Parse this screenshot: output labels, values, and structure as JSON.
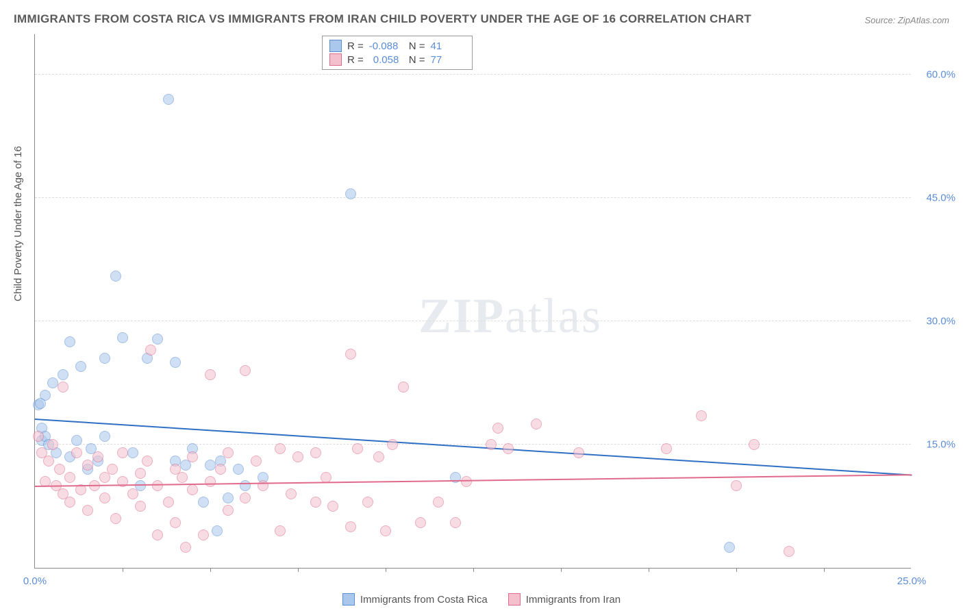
{
  "title": "IMMIGRANTS FROM COSTA RICA VS IMMIGRANTS FROM IRAN CHILD POVERTY UNDER THE AGE OF 16 CORRELATION CHART",
  "source": "Source: ZipAtlas.com",
  "ylabel": "Child Poverty Under the Age of 16",
  "watermark_a": "ZIP",
  "watermark_b": "atlas",
  "chart": {
    "type": "scatter",
    "xlim": [
      0,
      25
    ],
    "ylim": [
      0,
      65
    ],
    "xticks": [
      0.0,
      25.0
    ],
    "xtick_labels": [
      "0.0%",
      "25.0%"
    ],
    "xtick_marks": [
      2.5,
      5.0,
      7.5,
      10.0,
      12.5,
      15.0,
      17.5,
      20.0,
      22.5
    ],
    "yticks": [
      15.0,
      30.0,
      45.0,
      60.0
    ],
    "ytick_labels": [
      "15.0%",
      "30.0%",
      "45.0%",
      "60.0%"
    ],
    "background_color": "#ffffff",
    "grid_color": "#dddddd",
    "axis_color": "#888888",
    "tick_label_color": "#5b8dd6",
    "point_radius": 8,
    "point_opacity": 0.55,
    "series": [
      {
        "name": "Immigrants from Costa Rica",
        "fill": "#a9c8ec",
        "stroke": "#5b8dd6",
        "trend_color": "#2f6fc4",
        "R": "-0.088",
        "N": "41",
        "trend": {
          "x1": 0,
          "y1": 18.0,
          "x2": 25,
          "y2": 11.2
        },
        "points": [
          [
            0.1,
            19.8
          ],
          [
            0.2,
            17.0
          ],
          [
            0.2,
            15.5
          ],
          [
            0.3,
            21.0
          ],
          [
            0.3,
            16.0
          ],
          [
            0.4,
            15.0
          ],
          [
            0.5,
            22.5
          ],
          [
            0.6,
            14.0
          ],
          [
            0.8,
            23.5
          ],
          [
            1.0,
            13.5
          ],
          [
            1.0,
            27.5
          ],
          [
            1.2,
            15.5
          ],
          [
            1.3,
            24.5
          ],
          [
            1.5,
            12.0
          ],
          [
            1.6,
            14.5
          ],
          [
            1.8,
            13.0
          ],
          [
            2.0,
            25.5
          ],
          [
            2.0,
            16.0
          ],
          [
            2.3,
            35.5
          ],
          [
            2.5,
            28.0
          ],
          [
            2.8,
            14.0
          ],
          [
            3.0,
            10.0
          ],
          [
            3.2,
            25.5
          ],
          [
            3.5,
            27.8
          ],
          [
            3.8,
            57.0
          ],
          [
            4.0,
            13.0
          ],
          [
            4.0,
            25.0
          ],
          [
            4.3,
            12.5
          ],
          [
            4.5,
            14.5
          ],
          [
            4.8,
            8.0
          ],
          [
            5.0,
            12.5
          ],
          [
            5.2,
            4.5
          ],
          [
            5.3,
            13.0
          ],
          [
            5.5,
            8.5
          ],
          [
            5.8,
            12.0
          ],
          [
            6.0,
            10.0
          ],
          [
            6.5,
            11.0
          ],
          [
            9.0,
            45.5
          ],
          [
            12.0,
            11.0
          ],
          [
            19.8,
            2.5
          ],
          [
            0.15,
            20.0
          ]
        ]
      },
      {
        "name": "Immigrants from Iran",
        "fill": "#f4c0cd",
        "stroke": "#e06a8c",
        "trend_color": "#e06a8c",
        "R": "0.058",
        "N": "77",
        "trend": {
          "x1": 0,
          "y1": 9.8,
          "x2": 25,
          "y2": 11.2
        },
        "points": [
          [
            0.1,
            16.0
          ],
          [
            0.2,
            14.0
          ],
          [
            0.3,
            10.5
          ],
          [
            0.4,
            13.0
          ],
          [
            0.5,
            15.0
          ],
          [
            0.6,
            10.0
          ],
          [
            0.7,
            12.0
          ],
          [
            0.8,
            9.0
          ],
          [
            0.8,
            22.0
          ],
          [
            1.0,
            11.0
          ],
          [
            1.0,
            8.0
          ],
          [
            1.2,
            14.0
          ],
          [
            1.3,
            9.5
          ],
          [
            1.5,
            12.5
          ],
          [
            1.5,
            7.0
          ],
          [
            1.7,
            10.0
          ],
          [
            1.8,
            13.5
          ],
          [
            2.0,
            8.5
          ],
          [
            2.0,
            11.0
          ],
          [
            2.2,
            12.0
          ],
          [
            2.3,
            6.0
          ],
          [
            2.5,
            10.5
          ],
          [
            2.5,
            14.0
          ],
          [
            2.8,
            9.0
          ],
          [
            3.0,
            11.5
          ],
          [
            3.0,
            7.5
          ],
          [
            3.2,
            13.0
          ],
          [
            3.3,
            26.5
          ],
          [
            3.5,
            4.0
          ],
          [
            3.5,
            10.0
          ],
          [
            3.8,
            8.0
          ],
          [
            4.0,
            12.0
          ],
          [
            4.0,
            5.5
          ],
          [
            4.2,
            11.0
          ],
          [
            4.3,
            2.5
          ],
          [
            4.5,
            9.5
          ],
          [
            4.5,
            13.5
          ],
          [
            4.8,
            4.0
          ],
          [
            5.0,
            10.5
          ],
          [
            5.0,
            23.5
          ],
          [
            5.3,
            12.0
          ],
          [
            5.5,
            7.0
          ],
          [
            5.5,
            14.0
          ],
          [
            6.0,
            24.0
          ],
          [
            6.0,
            8.5
          ],
          [
            6.3,
            13.0
          ],
          [
            6.5,
            10.0
          ],
          [
            7.0,
            14.5
          ],
          [
            7.0,
            4.5
          ],
          [
            7.3,
            9.0
          ],
          [
            7.5,
            13.5
          ],
          [
            8.0,
            8.0
          ],
          [
            8.0,
            14.0
          ],
          [
            8.5,
            7.5
          ],
          [
            9.0,
            26.0
          ],
          [
            9.0,
            5.0
          ],
          [
            9.2,
            14.5
          ],
          [
            9.5,
            8.0
          ],
          [
            10.0,
            4.5
          ],
          [
            10.2,
            15.0
          ],
          [
            10.5,
            22.0
          ],
          [
            11.0,
            5.5
          ],
          [
            11.5,
            8.0
          ],
          [
            12.0,
            5.5
          ],
          [
            12.3,
            10.5
          ],
          [
            13.0,
            15.0
          ],
          [
            13.2,
            17.0
          ],
          [
            13.5,
            14.5
          ],
          [
            14.3,
            17.5
          ],
          [
            15.5,
            14.0
          ],
          [
            18.0,
            14.5
          ],
          [
            19.0,
            18.5
          ],
          [
            20.0,
            10.0
          ],
          [
            20.5,
            15.0
          ],
          [
            21.5,
            2.0
          ],
          [
            9.8,
            13.5
          ],
          [
            8.3,
            11.0
          ]
        ]
      }
    ]
  },
  "legend_labels": {
    "r_eq": "R =",
    "n_eq": "N ="
  }
}
